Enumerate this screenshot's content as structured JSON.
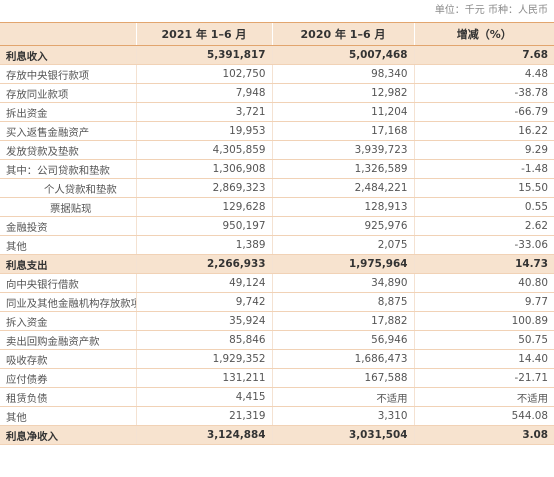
{
  "unit_text": "单位：千元 币种：人民币",
  "headers": [
    "",
    "2021 年 1–6 月",
    "2020 年 1–6 月",
    "增减（%）"
  ],
  "rows": [
    {
      "label": "利息收入",
      "v2021": "5,391,817",
      "v2020": "5,007,468",
      "change": "7.68",
      "bold": true
    },
    {
      "label": "存放中央银行款项",
      "v2021": "102,750",
      "v2020": "98,340",
      "change": "4.48"
    },
    {
      "label": "存放同业款项",
      "v2021": "7,948",
      "v2020": "12,982",
      "change": "-38.78"
    },
    {
      "label": "拆出资金",
      "v2021": "3,721",
      "v2020": "11,204",
      "change": "-66.79"
    },
    {
      "label": "买入返售金融资产",
      "v2021": "19,953",
      "v2020": "17,168",
      "change": "16.22"
    },
    {
      "label": "发放贷款及垫款",
      "v2021": "4,305,859",
      "v2020": "3,939,723",
      "change": "9.29"
    },
    {
      "label": "其中：公司贷款和垫款",
      "v2021": "1,306,908",
      "v2020": "1,326,589",
      "change": "-1.48"
    },
    {
      "label": "个人贷款和垫款",
      "v2021": "2,869,323",
      "v2020": "2,484,221",
      "change": "15.50",
      "indent": 1
    },
    {
      "label": "票据贴现",
      "v2021": "129,628",
      "v2020": "128,913",
      "change": "0.55",
      "indent": 2
    },
    {
      "label": "金融投资",
      "v2021": "950,197",
      "v2020": "925,976",
      "change": "2.62"
    },
    {
      "label": "其他",
      "v2021": "1,389",
      "v2020": "2,075",
      "change": "-33.06"
    },
    {
      "label": "利息支出",
      "v2021": "2,266,933",
      "v2020": "1,975,964",
      "change": "14.73",
      "bold": true
    },
    {
      "label": "向中央银行借款",
      "v2021": "49,124",
      "v2020": "34,890",
      "change": "40.80"
    },
    {
      "label": "同业及其他金融机构存放款项",
      "v2021": "9,742",
      "v2020": "8,875",
      "change": "9.77"
    },
    {
      "label": "拆入资金",
      "v2021": "35,924",
      "v2020": "17,882",
      "change": "100.89"
    },
    {
      "label": "卖出回购金融资产款",
      "v2021": "85,846",
      "v2020": "56,946",
      "change": "50.75"
    },
    {
      "label": "吸收存款",
      "v2021": "1,929,352",
      "v2020": "1,686,473",
      "change": "14.40"
    },
    {
      "label": "应付债券",
      "v2021": "131,211",
      "v2020": "167,588",
      "change": "-21.71"
    },
    {
      "label": "租赁负债",
      "v2021": "4,415",
      "v2020": "不适用",
      "change": "不适用"
    },
    {
      "label": "其他",
      "v2021": "21,319",
      "v2020": "3,310",
      "change": "544.08"
    },
    {
      "label": "利息净收入",
      "v2021": "3,124,884",
      "v2020": "3,031,504",
      "change": "3.08",
      "bold": true
    }
  ]
}
